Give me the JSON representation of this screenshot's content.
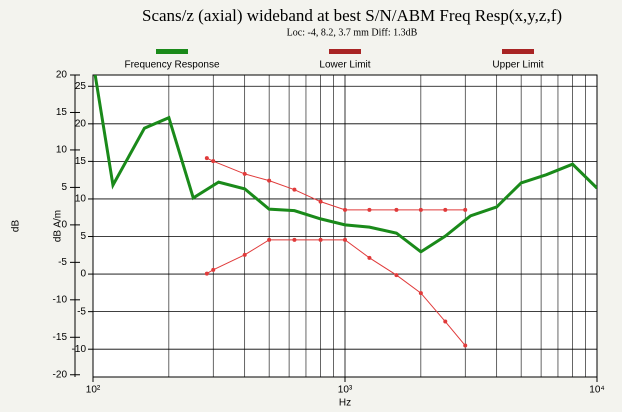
{
  "chart_data": {
    "type": "line",
    "title": "Scans/z (axial) wideband at best S/N/ABM Freq Resp(x,y,z,f)",
    "subtitle": "Loc: -4, 8.2, 3.7 mm Diff: 1.3dB",
    "x_label": "Hz",
    "y_label": "dB",
    "y2_label": "dB A/m",
    "log_x": true,
    "grid": true,
    "legend": "top",
    "xlim": [
      100,
      10000
    ],
    "xticks": [
      {
        "value": 100,
        "label": "10²"
      },
      {
        "value": 1000,
        "label": "10³"
      },
      {
        "value": 10000,
        "label": "10⁴"
      }
    ],
    "ylim": [
      -20.3,
      20
    ],
    "yticks": [
      -20,
      -15,
      -10,
      -5,
      0,
      5,
      10,
      15,
      20
    ],
    "y2lim": [
      -13.7,
      26.5
    ],
    "y2ticks": [
      -10,
      -5,
      0,
      5,
      10,
      15,
      20,
      25
    ],
    "series": [
      {
        "name": "Frequency Response",
        "color": "#1a8a1a",
        "legend_color": "#1a8a1a",
        "width": 3,
        "x": [
          102,
          120,
          160,
          200,
          250,
          315,
          400,
          500,
          630,
          800,
          1000,
          1250,
          1600,
          2000,
          2500,
          3150,
          4000,
          5000,
          6300,
          8000,
          10000
        ],
        "values": [
          20,
          5.3,
          12.9,
          14.3,
          3.6,
          5.7,
          4.8,
          2.1,
          1.9,
          0.8,
          0,
          -0.3,
          -1.1,
          -3.6,
          -1.5,
          1.2,
          2.4,
          5.6,
          6.7,
          8.1,
          4.9
        ]
      },
      {
        "name": "Lower Limit",
        "color": "#e03a3a",
        "legend_color": "#a82424",
        "width": 1,
        "x": [
          283,
          300,
          400,
          500,
          630,
          800,
          1000,
          1250,
          1600,
          2000,
          2500,
          3000
        ],
        "values": [
          -6.5,
          -6.0,
          -4.0,
          -2.0,
          -2.0,
          -2.0,
          -2.0,
          -4.4,
          -6.7,
          -9.1,
          -12.9,
          -16.1
        ]
      },
      {
        "name": "Upper Limit",
        "color": "#e03a3a",
        "legend_color": "#a82424",
        "width": 1,
        "x": [
          283,
          300,
          400,
          500,
          630,
          800,
          1000,
          1250,
          1600,
          2000,
          2500,
          3000
        ],
        "values": [
          8.9,
          8.5,
          6.8,
          5.9,
          4.7,
          3.1,
          2.0,
          2.0,
          2.0,
          2.0,
          2.0,
          2.0
        ]
      }
    ]
  }
}
